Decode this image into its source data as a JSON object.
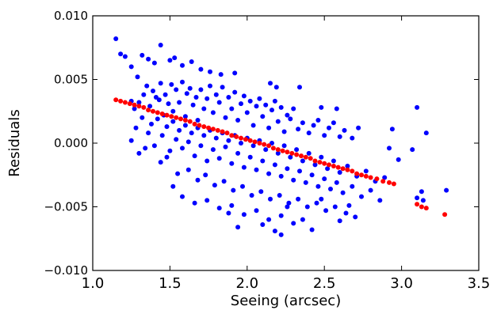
{
  "chart_data": {
    "type": "scatter",
    "title": "",
    "xlabel": "Seeing (arcsec)",
    "ylabel": "Residuals",
    "xlim": [
      1.0,
      3.5
    ],
    "ylim": [
      -0.01,
      0.01
    ],
    "xticks": [
      1.0,
      1.5,
      2.0,
      2.5,
      3.0,
      3.5
    ],
    "xtick_labels": [
      "1.0",
      "1.5",
      "2.0",
      "2.5",
      "3.0",
      "3.5"
    ],
    "yticks": [
      -0.01,
      -0.005,
      0.0,
      0.005,
      0.01
    ],
    "ytick_labels": [
      "−0.010",
      "−0.005",
      "0.000",
      "0.005",
      "0.010"
    ],
    "grid": false,
    "legend": "none",
    "series": [
      {
        "color": "#0000ff",
        "marker": "circle",
        "points": [
          [
            1.15,
            0.0082
          ],
          [
            1.18,
            0.007
          ],
          [
            1.21,
            0.0068
          ],
          [
            1.25,
            0.006
          ],
          [
            1.29,
            0.0052
          ],
          [
            1.32,
            0.0069
          ],
          [
            1.36,
            0.0066
          ],
          [
            1.4,
            0.0063
          ],
          [
            1.44,
            0.0077
          ],
          [
            1.5,
            0.0065
          ],
          [
            1.53,
            0.0067
          ],
          [
            1.58,
            0.0061
          ],
          [
            1.64,
            0.0064
          ],
          [
            1.7,
            0.0058
          ],
          [
            1.76,
            0.0056
          ],
          [
            1.83,
            0.0054
          ],
          [
            1.92,
            0.0055
          ],
          [
            2.15,
            0.0047
          ],
          [
            2.19,
            0.0044
          ],
          [
            2.34,
            0.0044
          ],
          [
            1.25,
            0.0033
          ],
          [
            1.27,
            0.0027
          ],
          [
            1.3,
            0.0032
          ],
          [
            1.33,
            0.0038
          ],
          [
            1.35,
            0.0045
          ],
          [
            1.37,
            0.0029
          ],
          [
            1.39,
            0.0041
          ],
          [
            1.41,
            0.0036
          ],
          [
            1.43,
            0.0034
          ],
          [
            1.44,
            0.0047
          ],
          [
            1.46,
            0.0022
          ],
          [
            1.47,
            0.0038
          ],
          [
            1.49,
            0.0031
          ],
          [
            1.51,
            0.0046
          ],
          [
            1.52,
            0.0025
          ],
          [
            1.54,
            0.0042
          ],
          [
            1.56,
            0.0032
          ],
          [
            1.58,
            0.0048
          ],
          [
            1.6,
            0.0021
          ],
          [
            1.61,
            0.0039
          ],
          [
            1.63,
            0.0043
          ],
          [
            1.65,
            0.003
          ],
          [
            1.67,
            0.0036
          ],
          [
            1.68,
            0.0018
          ],
          [
            1.7,
            0.0042
          ],
          [
            1.72,
            0.0027
          ],
          [
            1.74,
            0.0035
          ],
          [
            1.76,
            0.0045
          ],
          [
            1.78,
            0.0024
          ],
          [
            1.8,
            0.0038
          ],
          [
            1.82,
            0.0032
          ],
          [
            1.84,
            0.0044
          ],
          [
            1.86,
            0.002
          ],
          [
            1.88,
            0.0036
          ],
          [
            1.9,
            0.0027
          ],
          [
            1.92,
            0.004
          ],
          [
            1.94,
            0.0018
          ],
          [
            1.96,
            0.0031
          ],
          [
            1.98,
            0.0037
          ],
          [
            2.0,
            0.0024
          ],
          [
            2.02,
            0.0033
          ],
          [
            2.04,
            0.0014
          ],
          [
            2.06,
            0.0029
          ],
          [
            2.08,
            0.0035
          ],
          [
            2.1,
            0.0021
          ],
          [
            2.12,
            0.003
          ],
          [
            2.14,
            0.0012
          ],
          [
            2.16,
            0.0026
          ],
          [
            2.18,
            0.0033
          ],
          [
            2.2,
            0.0017
          ],
          [
            2.22,
            0.0028
          ],
          [
            2.24,
            0.0009
          ],
          [
            2.26,
            0.0022
          ],
          [
            2.28,
            0.0019
          ],
          [
            2.3,
            0.0027
          ],
          [
            2.33,
            0.0011
          ],
          [
            2.36,
            0.0016
          ],
          [
            2.4,
            0.0008
          ],
          [
            2.43,
            0.0014
          ],
          [
            2.46,
            0.0018
          ],
          [
            2.5,
            0.0006
          ],
          [
            2.53,
            0.0012
          ],
          [
            2.56,
            0.0016
          ],
          [
            2.6,
            0.0005
          ],
          [
            2.63,
            0.001
          ],
          [
            2.68,
            0.0004
          ],
          [
            2.72,
            0.0012
          ],
          [
            2.48,
            0.0028
          ],
          [
            2.58,
            0.0027
          ],
          [
            2.94,
            0.0011
          ],
          [
            3.1,
            0.0028
          ],
          [
            3.16,
            0.0008
          ],
          [
            2.92,
            -0.0004
          ],
          [
            3.07,
            -0.0005
          ],
          [
            2.98,
            -0.0013
          ],
          [
            3.13,
            -0.0038
          ],
          [
            3.29,
            -0.0037
          ],
          [
            3.14,
            -0.0045
          ],
          [
            3.1,
            -0.0043
          ],
          [
            2.64,
            -0.0055
          ],
          [
            1.25,
            0.0002
          ],
          [
            1.28,
            0.0012
          ],
          [
            1.32,
            0.002
          ],
          [
            1.36,
            0.0008
          ],
          [
            1.38,
            0.0015
          ],
          [
            1.4,
            -0.0002
          ],
          [
            1.42,
            0.0019
          ],
          [
            1.45,
            0.0006
          ],
          [
            1.48,
            0.0013
          ],
          [
            1.5,
            -0.0006
          ],
          [
            1.52,
            0.0017
          ],
          [
            1.54,
            0.0003
          ],
          [
            1.56,
            0.001
          ],
          [
            1.58,
            -0.0004
          ],
          [
            1.6,
            0.0014
          ],
          [
            1.62,
            0.0001
          ],
          [
            1.64,
            0.0008
          ],
          [
            1.66,
            -0.001
          ],
          [
            1.68,
            0.0012
          ],
          [
            1.7,
            -0.0002
          ],
          [
            1.72,
            0.0006
          ],
          [
            1.74,
            -0.0014
          ],
          [
            1.76,
            0.001
          ],
          [
            1.78,
            -0.0005
          ],
          [
            1.8,
            0.0004
          ],
          [
            1.82,
            -0.0012
          ],
          [
            1.84,
            0.0008
          ],
          [
            1.86,
            -0.0003
          ],
          [
            1.88,
            0.0002
          ],
          [
            1.9,
            -0.0016
          ],
          [
            1.92,
            0.0006
          ],
          [
            1.94,
            -0.0008
          ],
          [
            1.96,
            0.0
          ],
          [
            1.98,
            -0.0019
          ],
          [
            2.0,
            0.0004
          ],
          [
            2.02,
            -0.0011
          ],
          [
            2.04,
            -0.0002
          ],
          [
            2.06,
            -0.0021
          ],
          [
            2.08,
            0.0002
          ],
          [
            2.1,
            -0.0014
          ],
          [
            2.12,
            -0.0005
          ],
          [
            2.14,
            -0.0024
          ],
          [
            2.16,
            0.0
          ],
          [
            2.18,
            -0.0017
          ],
          [
            2.2,
            -0.0008
          ],
          [
            2.22,
            -0.0026
          ],
          [
            2.24,
            -0.0002
          ],
          [
            2.26,
            -0.002
          ],
          [
            2.28,
            -0.0011
          ],
          [
            2.3,
            -0.0029
          ],
          [
            2.32,
            -0.0005
          ],
          [
            2.34,
            -0.0022
          ],
          [
            2.36,
            -0.0014
          ],
          [
            2.38,
            -0.0031
          ],
          [
            2.4,
            -0.0008
          ],
          [
            2.42,
            -0.0025
          ],
          [
            2.44,
            -0.0017
          ],
          [
            2.46,
            -0.0034
          ],
          [
            2.48,
            -0.0011
          ],
          [
            2.5,
            -0.0028
          ],
          [
            2.52,
            -0.002
          ],
          [
            2.54,
            -0.0036
          ],
          [
            2.56,
            -0.0014
          ],
          [
            2.58,
            -0.0031
          ],
          [
            2.6,
            -0.0023
          ],
          [
            2.62,
            -0.0039
          ],
          [
            2.65,
            -0.0018
          ],
          [
            2.68,
            -0.0034
          ],
          [
            2.71,
            -0.0026
          ],
          [
            2.74,
            -0.0042
          ],
          [
            2.77,
            -0.0022
          ],
          [
            2.8,
            -0.0037
          ],
          [
            2.83,
            -0.003
          ],
          [
            2.86,
            -0.0045
          ],
          [
            2.89,
            -0.0027
          ],
          [
            1.3,
            -0.0008
          ],
          [
            1.34,
            -0.0004
          ],
          [
            1.44,
            -0.0015
          ],
          [
            1.48,
            -0.0011
          ],
          [
            1.55,
            -0.0024
          ],
          [
            1.62,
            -0.0021
          ],
          [
            1.68,
            -0.0029
          ],
          [
            1.73,
            -0.0025
          ],
          [
            1.79,
            -0.0033
          ],
          [
            1.85,
            -0.003
          ],
          [
            1.91,
            -0.0037
          ],
          [
            1.97,
            -0.0034
          ],
          [
            2.03,
            -0.0041
          ],
          [
            2.09,
            -0.0038
          ],
          [
            2.15,
            -0.0044
          ],
          [
            2.21,
            -0.0041
          ],
          [
            2.27,
            -0.0047
          ],
          [
            2.33,
            -0.0044
          ],
          [
            2.39,
            -0.005
          ],
          [
            2.45,
            -0.0047
          ],
          [
            2.51,
            -0.0053
          ],
          [
            2.57,
            -0.005
          ],
          [
            1.58,
            -0.0042
          ],
          [
            1.66,
            -0.0047
          ],
          [
            1.74,
            -0.0045
          ],
          [
            1.82,
            -0.0051
          ],
          [
            1.9,
            -0.0049
          ],
          [
            1.98,
            -0.0056
          ],
          [
            2.06,
            -0.0053
          ],
          [
            2.14,
            -0.006
          ],
          [
            2.22,
            -0.0057
          ],
          [
            2.3,
            -0.0063
          ],
          [
            1.94,
            -0.0066
          ],
          [
            2.1,
            -0.0064
          ],
          [
            2.22,
            -0.0072
          ],
          [
            2.42,
            -0.0068
          ],
          [
            2.6,
            -0.0061
          ],
          [
            2.7,
            -0.0058
          ],
          [
            1.52,
            -0.0034
          ],
          [
            2.18,
            -0.0069
          ],
          [
            2.36,
            -0.006
          ],
          [
            1.88,
            -0.0055
          ],
          [
            2.26,
            -0.005
          ],
          [
            2.48,
            -0.0044
          ],
          [
            2.66,
            -0.0049
          ]
        ]
      },
      {
        "color": "#ff0000",
        "marker": "circle",
        "points": [
          [
            1.15,
            0.0034
          ],
          [
            1.18,
            0.0033
          ],
          [
            1.21,
            0.0032
          ],
          [
            1.24,
            0.0031
          ],
          [
            1.27,
            0.003
          ],
          [
            1.3,
            0.0029
          ],
          [
            1.33,
            0.0028
          ],
          [
            1.36,
            0.0026
          ],
          [
            1.39,
            0.0025
          ],
          [
            1.42,
            0.0024
          ],
          [
            1.45,
            0.0023
          ],
          [
            1.48,
            0.0022
          ],
          [
            1.51,
            0.0021
          ],
          [
            1.54,
            0.002
          ],
          [
            1.57,
            0.0019
          ],
          [
            1.6,
            0.0018
          ],
          [
            1.63,
            0.0017
          ],
          [
            1.66,
            0.0015
          ],
          [
            1.69,
            0.0014
          ],
          [
            1.72,
            0.0013
          ],
          [
            1.75,
            0.0012
          ],
          [
            1.78,
            0.0011
          ],
          [
            1.81,
            0.001
          ],
          [
            1.84,
            0.0009
          ],
          [
            1.87,
            0.0008
          ],
          [
            1.9,
            0.0006
          ],
          [
            1.93,
            0.0005
          ],
          [
            1.96,
            0.0004
          ],
          [
            1.99,
            0.0003
          ],
          [
            2.02,
            0.0002
          ],
          [
            2.05,
            0.0001
          ],
          [
            2.08,
            0.0
          ],
          [
            2.11,
            -0.0001
          ],
          [
            2.14,
            -0.0002
          ],
          [
            2.17,
            -0.0004
          ],
          [
            2.2,
            -0.0005
          ],
          [
            2.23,
            -0.0006
          ],
          [
            2.26,
            -0.0007
          ],
          [
            2.29,
            -0.0008
          ],
          [
            2.32,
            -0.0009
          ],
          [
            2.35,
            -0.001
          ],
          [
            2.38,
            -0.0011
          ],
          [
            2.41,
            -0.0012
          ],
          [
            2.44,
            -0.0014
          ],
          [
            2.47,
            -0.0015
          ],
          [
            2.5,
            -0.0016
          ],
          [
            2.53,
            -0.0017
          ],
          [
            2.56,
            -0.0018
          ],
          [
            2.59,
            -0.0019
          ],
          [
            2.62,
            -0.002
          ],
          [
            2.65,
            -0.0021
          ],
          [
            2.68,
            -0.0022
          ],
          [
            2.71,
            -0.0024
          ],
          [
            2.74,
            -0.0025
          ],
          [
            2.77,
            -0.0026
          ],
          [
            2.8,
            -0.0027
          ],
          [
            2.84,
            -0.0028
          ],
          [
            2.88,
            -0.003
          ],
          [
            2.92,
            -0.0031
          ],
          [
            2.95,
            -0.0032
          ],
          [
            3.1,
            -0.0048
          ],
          [
            3.13,
            -0.005
          ],
          [
            3.16,
            -0.0051
          ],
          [
            3.28,
            -0.0056
          ]
        ]
      }
    ]
  }
}
